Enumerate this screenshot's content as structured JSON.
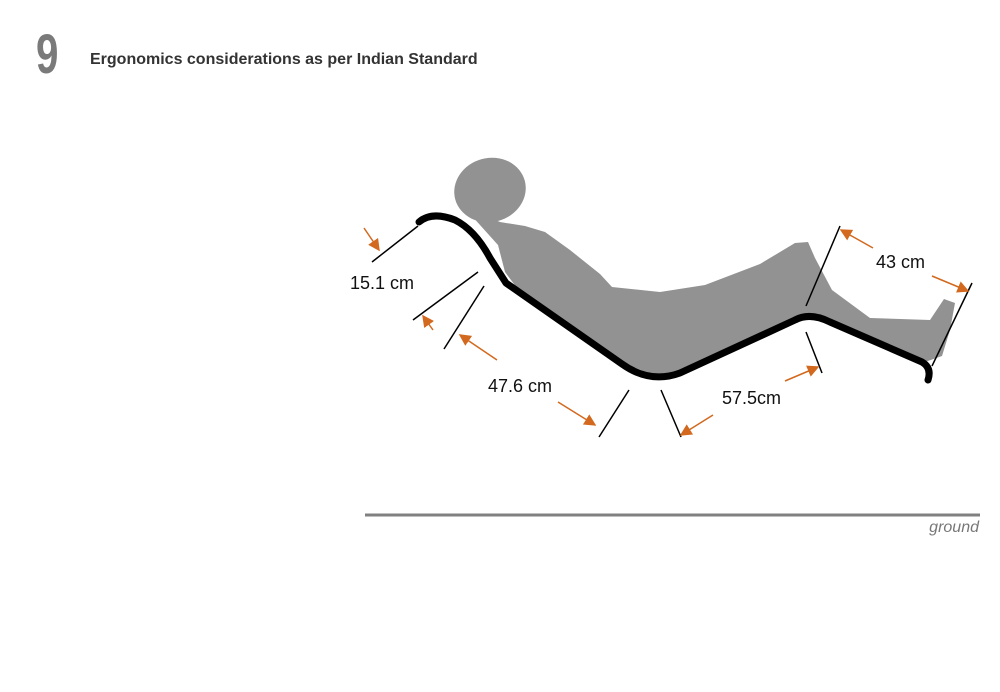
{
  "header": {
    "section_number": "9",
    "title": "Ergonomics considerations as per Indian Standard"
  },
  "diagram": {
    "dimensions": [
      "15.1 cm",
      "47.6 cm",
      "57.5cm",
      "43 cm"
    ],
    "ground_label": "ground",
    "colors": {
      "chair": "#000000",
      "silhouette": "#929292",
      "arrow": "#d2691e",
      "ground": "#808080"
    }
  }
}
